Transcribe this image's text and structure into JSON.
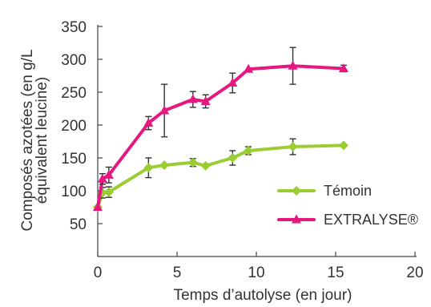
{
  "chart_data": {
    "type": "line",
    "title": "",
    "xlabel": "Temps d’autolyse (en jour)",
    "ylabel_lines": [
      "Composés azotées (en g/L",
      "équivalent leucine)"
    ],
    "xlim": [
      0,
      20
    ],
    "ylim": [
      0,
      350
    ],
    "x_ticks": [
      0,
      5,
      10,
      15,
      20
    ],
    "y_ticks": [
      50,
      100,
      150,
      200,
      250,
      300,
      350
    ],
    "grid": false,
    "legend_position": "right",
    "series": [
      {
        "name": "Témoin",
        "color": "#9acd32",
        "marker": "diamond",
        "x": [
          0,
          0.3,
          0.7,
          3.2,
          4.2,
          6,
          6.8,
          8.5,
          9.5,
          12.3,
          15.5
        ],
        "y": [
          75,
          97,
          98,
          135,
          139,
          143,
          138,
          150,
          161,
          167,
          169
        ],
        "err": [
          0,
          8,
          8,
          15,
          0,
          6,
          0,
          11,
          6,
          12,
          0
        ]
      },
      {
        "name": "EXTRALYSE®",
        "color": "#e6177f",
        "marker": "triangle",
        "x": [
          0,
          0.3,
          0.7,
          3.2,
          4.2,
          6,
          6.8,
          8.5,
          9.5,
          12.3,
          15.5
        ],
        "y": [
          75,
          118,
          124,
          203,
          222,
          239,
          236,
          264,
          285,
          290,
          286
        ],
        "err": [
          0,
          8,
          12,
          10,
          40,
          12,
          10,
          15,
          0,
          28,
          5
        ]
      }
    ]
  }
}
